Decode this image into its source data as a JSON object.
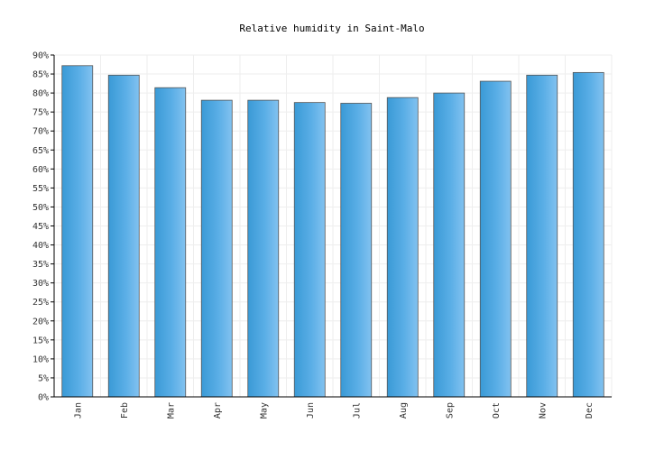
{
  "chart_data": {
    "type": "bar",
    "title": "Relative humidity in Saint-Malo",
    "xlabel": "",
    "ylabel": "",
    "categories": [
      "Jan",
      "Feb",
      "Mar",
      "Apr",
      "May",
      "Jun",
      "Jul",
      "Aug",
      "Sep",
      "Oct",
      "Nov",
      "Dec"
    ],
    "values": [
      87.2,
      84.7,
      81.4,
      78.1,
      78.1,
      77.5,
      77.3,
      78.8,
      80.0,
      83.1,
      84.7,
      85.4
    ],
    "ylim": [
      0,
      90
    ],
    "yticks": [
      "0%",
      "5%",
      "10%",
      "15%",
      "20%",
      "25%",
      "30%",
      "35%",
      "40%",
      "45%",
      "50%",
      "55%",
      "60%",
      "65%",
      "70%",
      "75%",
      "80%",
      "85%",
      "90%"
    ],
    "grid": true,
    "colors": {
      "bar_light": "#7fbfee",
      "bar_dark": "#3a9ad6",
      "bar_edge": "#555555"
    }
  }
}
